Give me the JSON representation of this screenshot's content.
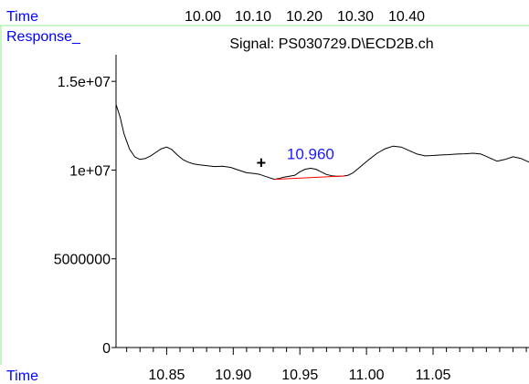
{
  "header": {
    "time_label": "Time",
    "response_label": "Response_",
    "time_ticks": [
      "10.00",
      "10.10",
      "10.20",
      "10.30",
      "10.40"
    ]
  },
  "colors": {
    "header_text": "#0000ff",
    "guide_line": "#90ee90",
    "trace": "#000000",
    "baseline": "#ff0000",
    "peak_label": "#1a1aff"
  },
  "chart_data": {
    "type": "line",
    "title": "Signal: PS030729.D\\ECD2B.ch",
    "xlabel": "Time",
    "ylabel": "Response_",
    "xlim": [
      10.812,
      11.122
    ],
    "ylim": [
      0,
      16500000
    ],
    "grid": false,
    "y_tick_labels": [
      {
        "value": 0,
        "label": "0"
      },
      {
        "value": 5000000,
        "label": "5000000"
      },
      {
        "value": 10000000,
        "label": "1e+07"
      },
      {
        "value": 15000000,
        "label": "1.5e+07"
      }
    ],
    "x_tick_labels": [
      {
        "value": 10.85,
        "label": "10.85"
      },
      {
        "value": 10.9,
        "label": "10.90"
      },
      {
        "value": 10.95,
        "label": "10.95"
      },
      {
        "value": 11.0,
        "label": "11.00"
      },
      {
        "value": 11.05,
        "label": "11.05"
      }
    ],
    "x_minor_step": 0.01,
    "series": [
      {
        "x": [
          10.812,
          10.815,
          10.818,
          10.822,
          10.826,
          10.83,
          10.834,
          10.838,
          10.842,
          10.846,
          10.85,
          10.854,
          10.858,
          10.862,
          10.866,
          10.87,
          10.874,
          10.88,
          10.886,
          10.892,
          10.898,
          10.904,
          10.91,
          10.916,
          10.92,
          10.924,
          10.928,
          10.931,
          10.934,
          10.938,
          10.942,
          10.946,
          10.95,
          10.954,
          10.958,
          10.962,
          10.966,
          10.97,
          10.974,
          10.978,
          10.982,
          10.986,
          10.99,
          10.994,
          10.998,
          11.002,
          11.008,
          11.014,
          11.02,
          11.026,
          11.032,
          11.038,
          11.044,
          11.05,
          11.056,
          11.062,
          11.068,
          11.074,
          11.08,
          11.086,
          11.092,
          11.098,
          11.104,
          11.11,
          11.116,
          11.122
        ],
        "y": [
          13700000,
          13000000,
          12050000,
          11200000,
          10750000,
          10600000,
          10650000,
          10800000,
          11000000,
          11200000,
          11300000,
          11150000,
          10850000,
          10600000,
          10450000,
          10350000,
          10300000,
          10250000,
          10200000,
          10220000,
          10150000,
          10000000,
          9850000,
          9800000,
          9750000,
          9650000,
          9550000,
          9480000,
          9520000,
          9600000,
          9650000,
          9700000,
          9900000,
          10050000,
          10100000,
          10050000,
          9900000,
          9750000,
          9680000,
          9650000,
          9660000,
          9700000,
          9850000,
          10100000,
          10350000,
          10600000,
          10950000,
          11200000,
          11350000,
          11300000,
          11100000,
          10900000,
          10800000,
          10820000,
          10850000,
          10870000,
          10900000,
          10920000,
          10950000,
          10900000,
          10700000,
          10500000,
          10600000,
          10750000,
          10650000,
          10450000
        ]
      }
    ],
    "baseline": {
      "x": [
        10.931,
        10.984
      ],
      "y": [
        9480000,
        9670000
      ]
    },
    "annotations": [
      {
        "text": "10.960",
        "x": 10.958,
        "y": 10100000
      },
      {
        "text": "+",
        "x": 10.921,
        "y": 10100000
      }
    ]
  }
}
